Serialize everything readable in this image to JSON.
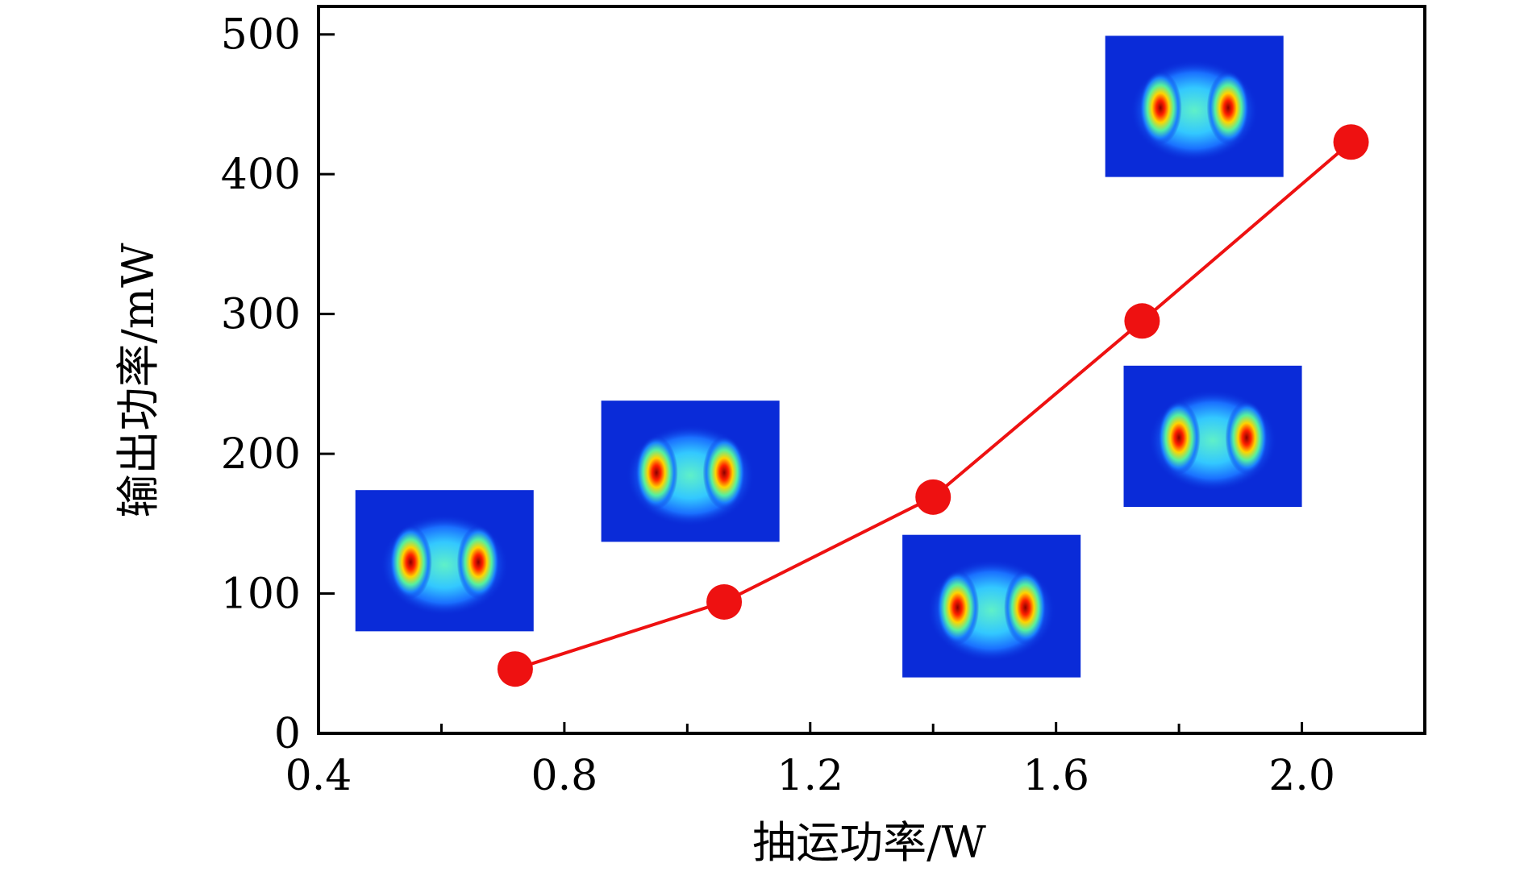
{
  "chart_data": {
    "type": "line",
    "xlabel": "抽运功率/W",
    "ylabel": "输出功率/mW",
    "xlim": [
      0.4,
      2.2
    ],
    "ylim": [
      0,
      520
    ],
    "x_ticks": [
      0.4,
      0.8,
      1.2,
      1.6,
      2.0
    ],
    "x_tick_labels": [
      "0.4",
      "0.8",
      "1.2",
      "1.6",
      "2.0"
    ],
    "x_minor_ticks": [
      0.6,
      1.0,
      1.4,
      1.8
    ],
    "y_ticks": [
      0,
      100,
      200,
      300,
      400,
      500
    ],
    "y_tick_labels": [
      "0",
      "100",
      "200",
      "300",
      "400",
      "500"
    ],
    "grid": false,
    "series": [
      {
        "color": "#ee1111",
        "marker": "circle",
        "x": [
          0.72,
          1.06,
          1.4,
          1.74,
          2.08
        ],
        "y": [
          46,
          94,
          169,
          295,
          423
        ]
      }
    ],
    "insets": [
      {
        "kind": "two-lobe beam profile",
        "x_range": [
          0.46,
          0.75
        ],
        "y_range": [
          73,
          174
        ]
      },
      {
        "kind": "two-lobe beam profile",
        "x_range": [
          0.86,
          1.15
        ],
        "y_range": [
          137,
          238
        ]
      },
      {
        "kind": "two-lobe beam profile",
        "x_range": [
          1.35,
          1.64
        ],
        "y_range": [
          40,
          142
        ]
      },
      {
        "kind": "two-lobe beam profile",
        "x_range": [
          1.71,
          2.0
        ],
        "y_range": [
          162,
          263
        ]
      },
      {
        "kind": "two-lobe beam profile",
        "x_range": [
          1.68,
          1.97
        ],
        "y_range": [
          398,
          499
        ]
      }
    ]
  }
}
